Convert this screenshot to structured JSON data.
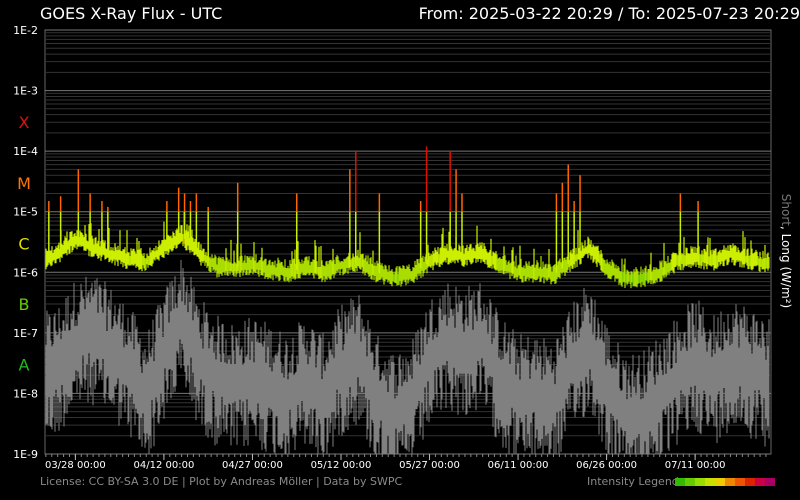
{
  "header": {
    "title": "GOES X-Ray Flux - UTC",
    "from_label": "From:",
    "from_value": "2025-03-22 20:29",
    "separator": "/",
    "to_label": "To:",
    "to_value": "2025-07-23 20:29"
  },
  "footer": {
    "credits": "License: CC BY-SA 3.0 DE | Plot by Andreas Möller | Data by SWPC",
    "legend_label": "Intensity Legend",
    "legend_colors": [
      "#33bb00",
      "#66cc00",
      "#99dd00",
      "#ccdd00",
      "#eecc00",
      "#ee8800",
      "#ee5500",
      "#dd2200",
      "#cc0044",
      "#aa0066"
    ]
  },
  "colors": {
    "background": "#000000",
    "grid": "#444444",
    "long_channel_low": "#66cc00",
    "long_channel_mid": "#ccee00",
    "long_channel_high": "#ff6600",
    "long_channel_x": "#dd1100",
    "short_channel": "#808080",
    "class_x": "#dd1111",
    "class_m": "#ff7700",
    "class_c": "#dddd00",
    "class_b": "#66cc00",
    "class_a": "#22bb22"
  },
  "chart_data": {
    "type": "line",
    "title": "GOES X-Ray Flux - UTC",
    "ylabel_short": "Short",
    "ylabel_sep": ", ",
    "ylabel_long": "Long (W/m²)",
    "yscale": "log",
    "ylim": [
      1e-09,
      0.01
    ],
    "xlim": [
      "2025-03-22 20:29",
      "2025-07-23 20:29"
    ],
    "ytick_labels": [
      "1E-2",
      "1E-3",
      "1E-4",
      "1E-5",
      "1E-6",
      "1E-7",
      "1E-8",
      "1E-9"
    ],
    "xtick_labels": [
      "03/28 00:00",
      "04/12 00:00",
      "04/27 00:00",
      "05/12 00:00",
      "05/27 00:00",
      "06/11 00:00",
      "06/26 00:00",
      "07/11 00:00"
    ],
    "flare_classes": [
      {
        "label": "X",
        "flux": 0.0003,
        "color": "#dd1111"
      },
      {
        "label": "M",
        "flux": 3e-05,
        "color": "#ff7700"
      },
      {
        "label": "C",
        "flux": 3e-06,
        "color": "#dddd00"
      },
      {
        "label": "B",
        "flux": 3e-07,
        "color": "#66cc00"
      },
      {
        "label": "A",
        "flux": 3e-08,
        "color": "#22bb22"
      }
    ],
    "grid": true,
    "series": [
      {
        "name": "Long",
        "x": [
          "2025-03-22",
          "2025-03-25",
          "2025-03-28",
          "2025-03-31",
          "2025-04-03",
          "2025-04-06",
          "2025-04-09",
          "2025-04-12",
          "2025-04-15",
          "2025-04-18",
          "2025-04-21",
          "2025-04-24",
          "2025-04-27",
          "2025-04-30",
          "2025-05-03",
          "2025-05-06",
          "2025-05-09",
          "2025-05-12",
          "2025-05-15",
          "2025-05-18",
          "2025-05-21",
          "2025-05-24",
          "2025-05-27",
          "2025-05-30",
          "2025-06-02",
          "2025-06-05",
          "2025-06-08",
          "2025-06-11",
          "2025-06-14",
          "2025-06-17",
          "2025-06-20",
          "2025-06-23",
          "2025-06-26",
          "2025-06-29",
          "2025-07-02",
          "2025-07-05",
          "2025-07-08",
          "2025-07-11",
          "2025-07-14",
          "2025-07-17",
          "2025-07-20",
          "2025-07-23"
        ],
        "values": [
          1.5e-06,
          2e-06,
          3.5e-06,
          2.5e-06,
          2e-06,
          1.6e-06,
          1.5e-06,
          2.5e-06,
          4e-06,
          2e-06,
          1.2e-06,
          1.2e-06,
          1.3e-06,
          1.1e-06,
          1e-06,
          1.2e-06,
          1e-06,
          1.3e-06,
          1.5e-06,
          1e-06,
          8e-07,
          9e-07,
          1.5e-06,
          2e-06,
          1.8e-06,
          2e-06,
          1.3e-06,
          1e-06,
          1e-06,
          9e-07,
          1.5e-06,
          2.5e-06,
          1.2e-06,
          8e-07,
          8e-07,
          1e-06,
          1.5e-06,
          1.8e-06,
          1.5e-06,
          2e-06,
          1.6e-06,
          1.4e-06
        ]
      },
      {
        "name": "Short",
        "x": [
          "2025-03-22",
          "2025-03-25",
          "2025-03-28",
          "2025-03-31",
          "2025-04-03",
          "2025-04-06",
          "2025-04-09",
          "2025-04-12",
          "2025-04-15",
          "2025-04-18",
          "2025-04-21",
          "2025-04-24",
          "2025-04-27",
          "2025-04-30",
          "2025-05-03",
          "2025-05-06",
          "2025-05-09",
          "2025-05-12",
          "2025-05-15",
          "2025-05-18",
          "2025-05-21",
          "2025-05-24",
          "2025-05-27",
          "2025-05-30",
          "2025-06-02",
          "2025-06-05",
          "2025-06-08",
          "2025-06-11",
          "2025-06-14",
          "2025-06-17",
          "2025-06-20",
          "2025-06-23",
          "2025-06-26",
          "2025-06-29",
          "2025-07-02",
          "2025-07-05",
          "2025-07-08",
          "2025-07-11",
          "2025-07-14",
          "2025-07-17",
          "2025-07-20",
          "2025-07-23"
        ],
        "values": [
          2e-08,
          3e-08,
          8e-08,
          1e-07,
          6e-08,
          3e-08,
          1e-08,
          5e-08,
          2e-07,
          4e-08,
          2e-08,
          1.5e-08,
          2e-08,
          1.5e-08,
          1e-08,
          2e-08,
          1e-08,
          3e-08,
          5e-08,
          1e-08,
          5e-09,
          8e-09,
          4e-08,
          8e-08,
          6e-08,
          8e-08,
          2e-08,
          1e-08,
          1e-08,
          8e-09,
          3e-08,
          8e-08,
          1.5e-08,
          5e-09,
          5e-09,
          1e-08,
          2e-08,
          4e-08,
          2e-08,
          4e-08,
          3e-08,
          2e-08
        ]
      }
    ],
    "flare_peaks": [
      {
        "x": "2025-03-23",
        "value": 1.5e-05
      },
      {
        "x": "2025-03-25",
        "value": 1.8e-05
      },
      {
        "x": "2025-03-28",
        "value": 5e-05
      },
      {
        "x": "2025-03-30",
        "value": 2e-05
      },
      {
        "x": "2025-04-01",
        "value": 1.5e-05
      },
      {
        "x": "2025-04-02",
        "value": 1.2e-05
      },
      {
        "x": "2025-04-12",
        "value": 1.5e-05
      },
      {
        "x": "2025-04-14",
        "value": 2.5e-05
      },
      {
        "x": "2025-04-15",
        "value": 2e-05
      },
      {
        "x": "2025-04-16",
        "value": 1.5e-05
      },
      {
        "x": "2025-04-17",
        "value": 2e-05
      },
      {
        "x": "2025-04-19",
        "value": 1.2e-05
      },
      {
        "x": "2025-04-24",
        "value": 3e-05
      },
      {
        "x": "2025-05-04",
        "value": 2e-05
      },
      {
        "x": "2025-05-13",
        "value": 5e-05
      },
      {
        "x": "2025-05-14",
        "value": 0.0001
      },
      {
        "x": "2025-05-18",
        "value": 2e-05
      },
      {
        "x": "2025-05-25",
        "value": 1.5e-05
      },
      {
        "x": "2025-05-26",
        "value": 0.00012
      },
      {
        "x": "2025-05-30",
        "value": 0.0001
      },
      {
        "x": "2025-05-31",
        "value": 5e-05
      },
      {
        "x": "2025-06-01",
        "value": 2e-05
      },
      {
        "x": "2025-06-17",
        "value": 2e-05
      },
      {
        "x": "2025-06-18",
        "value": 3e-05
      },
      {
        "x": "2025-06-19",
        "value": 6e-05
      },
      {
        "x": "2025-06-20",
        "value": 1.5e-05
      },
      {
        "x": "2025-06-21",
        "value": 4e-05
      },
      {
        "x": "2025-07-08",
        "value": 2e-05
      },
      {
        "x": "2025-07-11",
        "value": 1.5e-05
      }
    ]
  }
}
